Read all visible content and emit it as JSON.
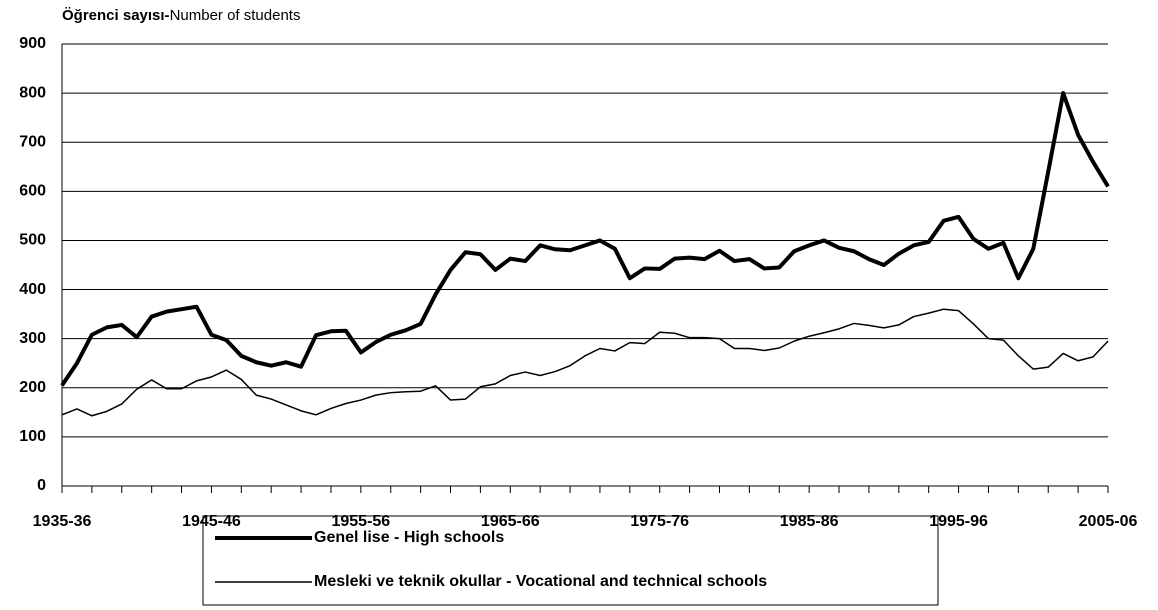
{
  "chart_data": {
    "type": "line",
    "y_label": [
      "Öğrenci sayısı-",
      "Number of students"
    ],
    "categories": [
      "1935-36",
      null,
      null,
      null,
      null,
      null,
      null,
      null,
      null,
      null,
      "1945-46",
      null,
      null,
      null,
      null,
      null,
      null,
      null,
      null,
      null,
      "1955-56",
      null,
      null,
      null,
      null,
      null,
      null,
      null,
      null,
      null,
      "1965-66",
      null,
      null,
      null,
      null,
      null,
      null,
      null,
      null,
      null,
      "1975-76",
      null,
      null,
      null,
      null,
      null,
      null,
      null,
      null,
      null,
      "1985-86",
      null,
      null,
      null,
      null,
      null,
      null,
      null,
      null,
      null,
      "1995-96",
      null,
      null,
      null,
      null,
      null,
      null,
      null,
      null,
      null,
      "2005-06"
    ],
    "series": [
      {
        "name": "Genel lise - High schools",
        "color": "#000000",
        "width": 4,
        "values": [
          205,
          250,
          308,
          323,
          328,
          303,
          345,
          355,
          360,
          365,
          308,
          297,
          265,
          252,
          245,
          252,
          243,
          307,
          315,
          316,
          272,
          293,
          308,
          317,
          330,
          390,
          440,
          476,
          472,
          440,
          463,
          458,
          490,
          482,
          480,
          490,
          500,
          483,
          423,
          443,
          442,
          463,
          465,
          462,
          479,
          458,
          462,
          443,
          445,
          478,
          490,
          500,
          485,
          478,
          462,
          450,
          473,
          490,
          497,
          540,
          548,
          503,
          483,
          495,
          423,
          483,
          640,
          800,
          715,
          660,
          610
        ]
      },
      {
        "name": "Mesleki ve teknik okullar - Vocational and technical schools",
        "color": "#000000",
        "width": 1.5,
        "values": [
          145,
          157,
          143,
          152,
          167,
          197,
          216,
          198,
          198,
          214,
          222,
          236,
          217,
          185,
          177,
          165,
          153,
          145,
          158,
          168,
          175,
          185,
          190,
          192,
          193,
          204,
          175,
          177,
          202,
          208,
          225,
          232,
          225,
          233,
          245,
          265,
          280,
          275,
          292,
          290,
          313,
          311,
          302,
          302,
          300,
          280,
          280,
          276,
          281,
          295,
          305,
          312,
          320,
          331,
          327,
          322,
          328,
          345,
          352,
          360,
          357,
          330,
          300,
          297,
          265,
          238,
          242,
          270,
          255,
          263,
          295
        ]
      }
    ],
    "ylim": [
      0,
      900
    ],
    "yticks": [
      0,
      100,
      200,
      300,
      400,
      500,
      600,
      700,
      800,
      900
    ],
    "grid": true
  }
}
